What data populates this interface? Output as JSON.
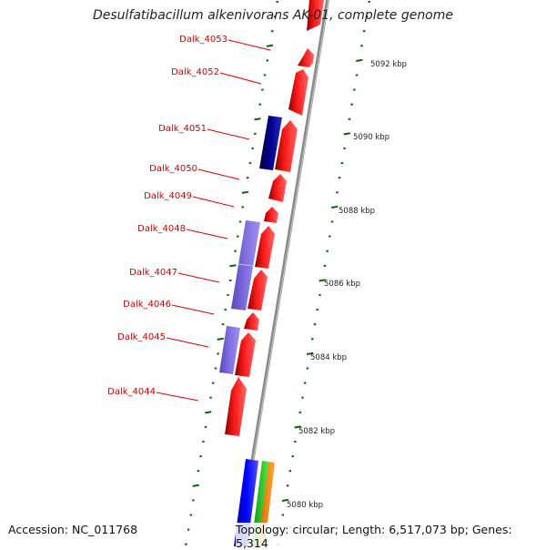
{
  "title": "Desulfatibacillum alkenivorans AK-01, complete genome",
  "footer": {
    "accession": "Accession: NC_011768",
    "topology": "Topology: circular; Length: 6,517,073 bp; Genes: 5,314"
  },
  "genes": [
    {
      "label": "Dalk_4053",
      "color": "#dd0000"
    },
    {
      "label": "Dalk_4052",
      "color": "#dd0000"
    },
    {
      "label": "Dalk_4051",
      "color": "#dd0000"
    },
    {
      "label": "Dalk_4050",
      "color": "#dd0000"
    },
    {
      "label": "Dalk_4049",
      "color": "#dd0000"
    },
    {
      "label": "Dalk_4048",
      "color": "#dd0000"
    },
    {
      "label": "Dalk_4047",
      "color": "#dd0000"
    },
    {
      "label": "Dalk_4046",
      "color": "#dd0000"
    },
    {
      "label": "Dalk_4045",
      "color": "#dd0000"
    },
    {
      "label": "Dalk_4044",
      "color": "#dd0000"
    }
  ],
  "scale_labels": [
    "5092 kbp",
    "5090 kbp",
    "5088 kbp",
    "5086 kbp",
    "5084 kbp",
    "5082 kbp",
    "5080 kbp"
  ],
  "colors": {
    "cds_forward": "#ff0000",
    "feature_dark_blue": "#000080",
    "feature_purple": "#7b68dd",
    "feature_blue": "#0000ff",
    "feature_green": "#22cc22",
    "feature_orange": "#ff8800",
    "backbone": "#888888",
    "tick": "#006600",
    "label_text": "#cc0000"
  }
}
